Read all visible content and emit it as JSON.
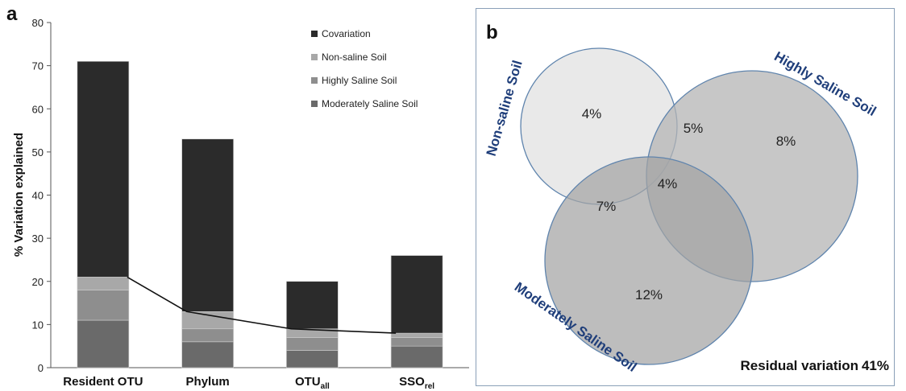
{
  "panel_a": {
    "label": "a",
    "chart_data": {
      "type": "bar",
      "stacked": true,
      "categories": [
        "Resident OTU",
        "Phylum",
        "OTU",
        "SSO"
      ],
      "category_subscripts": [
        "",
        "",
        "all",
        "rel"
      ],
      "series": [
        {
          "name": "Moderately Saline Soil",
          "color": "#6a6a6a",
          "values": [
            11,
            6,
            4,
            5
          ]
        },
        {
          "name": "Highly Saline Soil",
          "color": "#8e8e8e",
          "values": [
            7,
            3,
            3,
            2
          ]
        },
        {
          "name": "Non-saline Soil",
          "color": "#a8a8a8",
          "values": [
            3,
            4,
            2,
            1
          ]
        },
        {
          "name": "Covariation",
          "color": "#2b2b2b",
          "values": [
            50,
            40,
            11,
            18
          ]
        }
      ],
      "line_values": [
        21,
        13,
        9,
        8
      ],
      "legend_order": [
        "Covariation",
        "Non-saline Soil",
        "Highly Saline Soil",
        "Moderately Saline Soil"
      ],
      "legend_position": "top-right",
      "ylabel": "% Variation explained",
      "ylim": [
        0,
        80
      ],
      "yticks": [
        0,
        10,
        20,
        30,
        40,
        50,
        60,
        70,
        80
      ],
      "grid": false
    }
  },
  "panel_b": {
    "label": "b",
    "circles": [
      {
        "name": "Non-saline Soil",
        "fill": "#e9e9e9"
      },
      {
        "name": "Highly Saline Soil",
        "fill": "#b4b4b4"
      },
      {
        "name": "Moderately Saline Soil",
        "fill": "#a4a4a4"
      }
    ],
    "circle_stroke": "#5f84ad",
    "label_color": "#1f3e7a",
    "regions": {
      "non_saline_only": "4%",
      "non_saline_highly": "5%",
      "highly_only": "8%",
      "non_saline_moderately": "7%",
      "all_three": "4%",
      "moderately_only": "12%"
    },
    "residual_label": "Residual variation",
    "residual_value": "41%"
  }
}
